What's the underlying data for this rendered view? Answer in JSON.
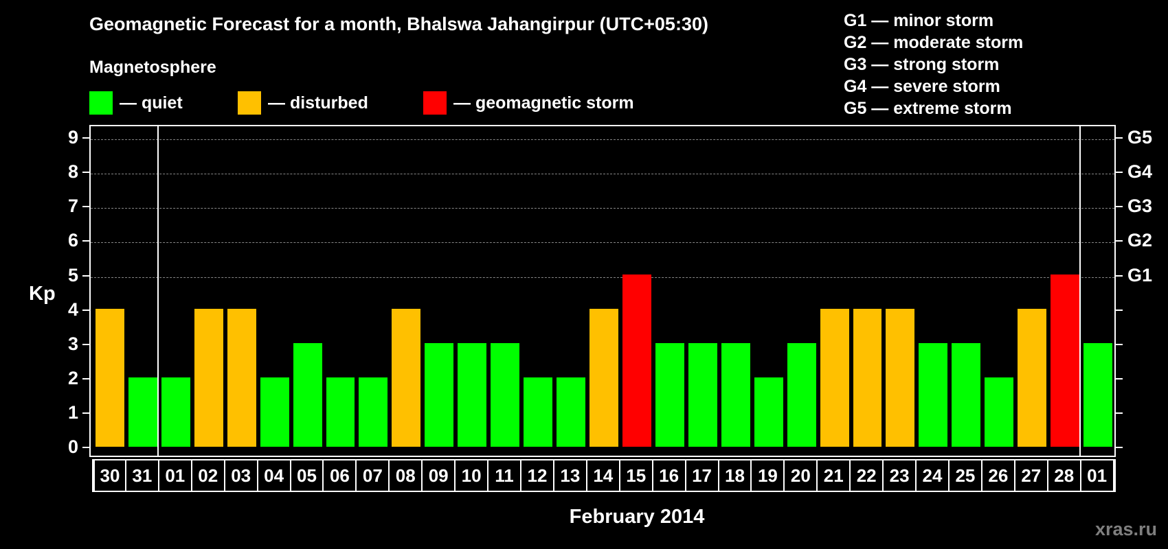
{
  "title": "Geomagnetic Forecast for a month, Bhalswa Jahangirpur (UTC+05:30)",
  "subtitle": "Magnetosphere",
  "legend": [
    {
      "label": "— quiet",
      "color": "#00ff00"
    },
    {
      "label": "— disturbed",
      "color": "#ffc000"
    },
    {
      "label": "— geomagnetic storm",
      "color": "#ff0000"
    }
  ],
  "g_scale": [
    "G1 — minor storm",
    "G2 — moderate storm",
    "G3 — strong storm",
    "G4 — severe storm",
    "G5 — extreme storm"
  ],
  "watermark": "xras.ru",
  "chart_data": {
    "type": "bar",
    "title": "Geomagnetic Forecast for a month, Bhalswa Jahangirpur (UTC+05:30)",
    "xlabel": "February 2014",
    "ylabel": "Kp",
    "ylim": [
      0,
      9
    ],
    "yticks": [
      0,
      1,
      2,
      3,
      4,
      5,
      6,
      7,
      8,
      9
    ],
    "right_axis_labels": [
      {
        "kp": 5,
        "label": "G1"
      },
      {
        "kp": 6,
        "label": "G2"
      },
      {
        "kp": 7,
        "label": "G3"
      },
      {
        "kp": 8,
        "label": "G4"
      },
      {
        "kp": 9,
        "label": "G5"
      }
    ],
    "grid": "dashed horizontal at Kp 5–9",
    "categories": [
      "30",
      "31",
      "01",
      "02",
      "03",
      "04",
      "05",
      "06",
      "07",
      "08",
      "09",
      "10",
      "11",
      "12",
      "13",
      "14",
      "15",
      "16",
      "17",
      "18",
      "19",
      "20",
      "21",
      "22",
      "23",
      "24",
      "25",
      "26",
      "27",
      "28",
      "01"
    ],
    "values": [
      4,
      2,
      2,
      4,
      4,
      2,
      3,
      2,
      2,
      4,
      3,
      3,
      3,
      2,
      2,
      4,
      5,
      3,
      3,
      3,
      2,
      3,
      4,
      4,
      4,
      3,
      3,
      2,
      4,
      5,
      3
    ],
    "status": [
      "disturbed",
      "quiet",
      "quiet",
      "disturbed",
      "disturbed",
      "quiet",
      "quiet",
      "quiet",
      "quiet",
      "disturbed",
      "quiet",
      "quiet",
      "quiet",
      "quiet",
      "quiet",
      "disturbed",
      "storm",
      "quiet",
      "quiet",
      "quiet",
      "quiet",
      "quiet",
      "disturbed",
      "disturbed",
      "disturbed",
      "quiet",
      "quiet",
      "quiet",
      "disturbed",
      "storm",
      "quiet"
    ],
    "colors": {
      "quiet": "#00ff00",
      "disturbed": "#ffc000",
      "storm": "#ff0000"
    },
    "month_separators_after_index": [
      1,
      29
    ]
  }
}
